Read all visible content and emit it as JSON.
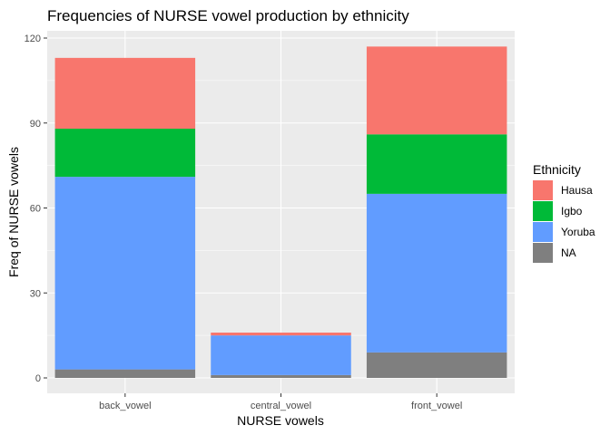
{
  "chart_data": {
    "type": "bar",
    "stacked": true,
    "title": "Frequencies of NURSE vowel production by ethnicity",
    "xlabel": "NURSE vowels",
    "ylabel": "Freq of NURSE vowels",
    "categories": [
      "back_vowel",
      "central_vowel",
      "front_vowel"
    ],
    "ylim": [
      0,
      120
    ],
    "yticks": [
      0,
      30,
      60,
      90,
      120
    ],
    "grid": true,
    "legend": {
      "title": "Ethnicity",
      "position": "right"
    },
    "series": [
      {
        "name": "Hausa",
        "color": "#F8766D",
        "values": [
          25,
          1,
          31
        ]
      },
      {
        "name": "Igbo",
        "color": "#00BA38",
        "values": [
          17,
          0,
          21
        ]
      },
      {
        "name": "Yoruba",
        "color": "#619CFF",
        "values": [
          68,
          14,
          56
        ]
      },
      {
        "name": "NA",
        "color": "#7F7F7F",
        "values": [
          3,
          1,
          9
        ]
      }
    ]
  }
}
